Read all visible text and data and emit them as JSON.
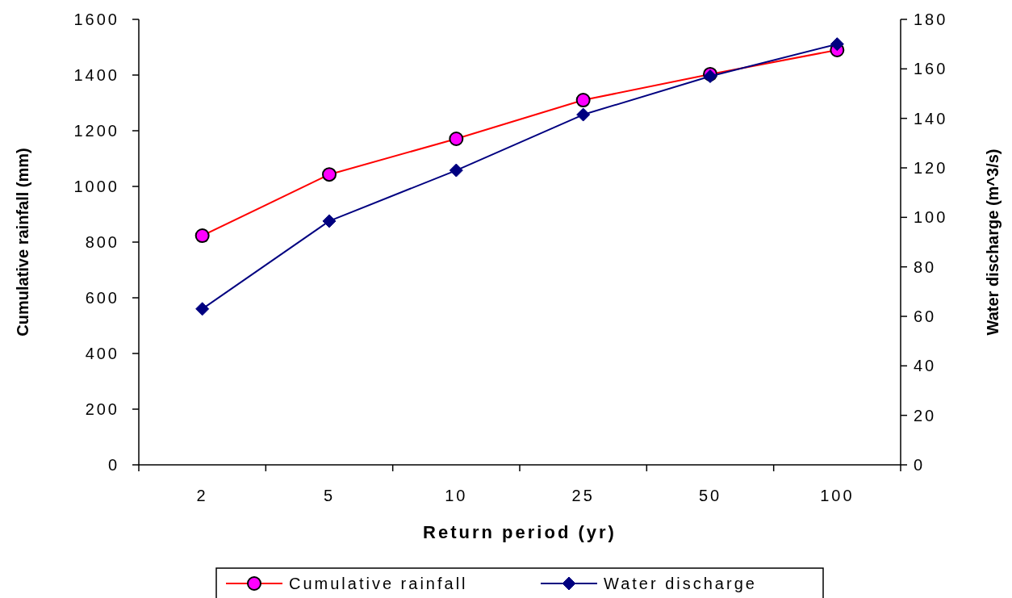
{
  "chart_data": {
    "type": "line",
    "xlabel": "Return period (yr)",
    "ylabel": "Cumulative rainfall (mm)",
    "y2label": "Water discharge (m^3/s)",
    "categories": [
      "2",
      "5",
      "10",
      "25",
      "50",
      "100"
    ],
    "series": [
      {
        "name": "Cumulative rainfall",
        "color": "#ff0000",
        "marker": "circle",
        "values": [
          823,
          1043,
          1171,
          1310,
          1403,
          1490
        ]
      },
      {
        "name": "Water discharge",
        "color": "#000080",
        "marker": "diamond",
        "axis": "y2",
        "values": [
          63,
          98.5,
          119,
          141.5,
          157,
          170
        ]
      }
    ],
    "ylim": [
      0,
      1600
    ],
    "yticks": [
      0,
      200,
      400,
      600,
      800,
      1000,
      1200,
      1400,
      1600
    ],
    "y2lim": [
      0,
      180
    ],
    "y2ticks": [
      0,
      20,
      40,
      60,
      80,
      100,
      120,
      140,
      160,
      180
    ],
    "grid": false,
    "legend": "bottom"
  }
}
